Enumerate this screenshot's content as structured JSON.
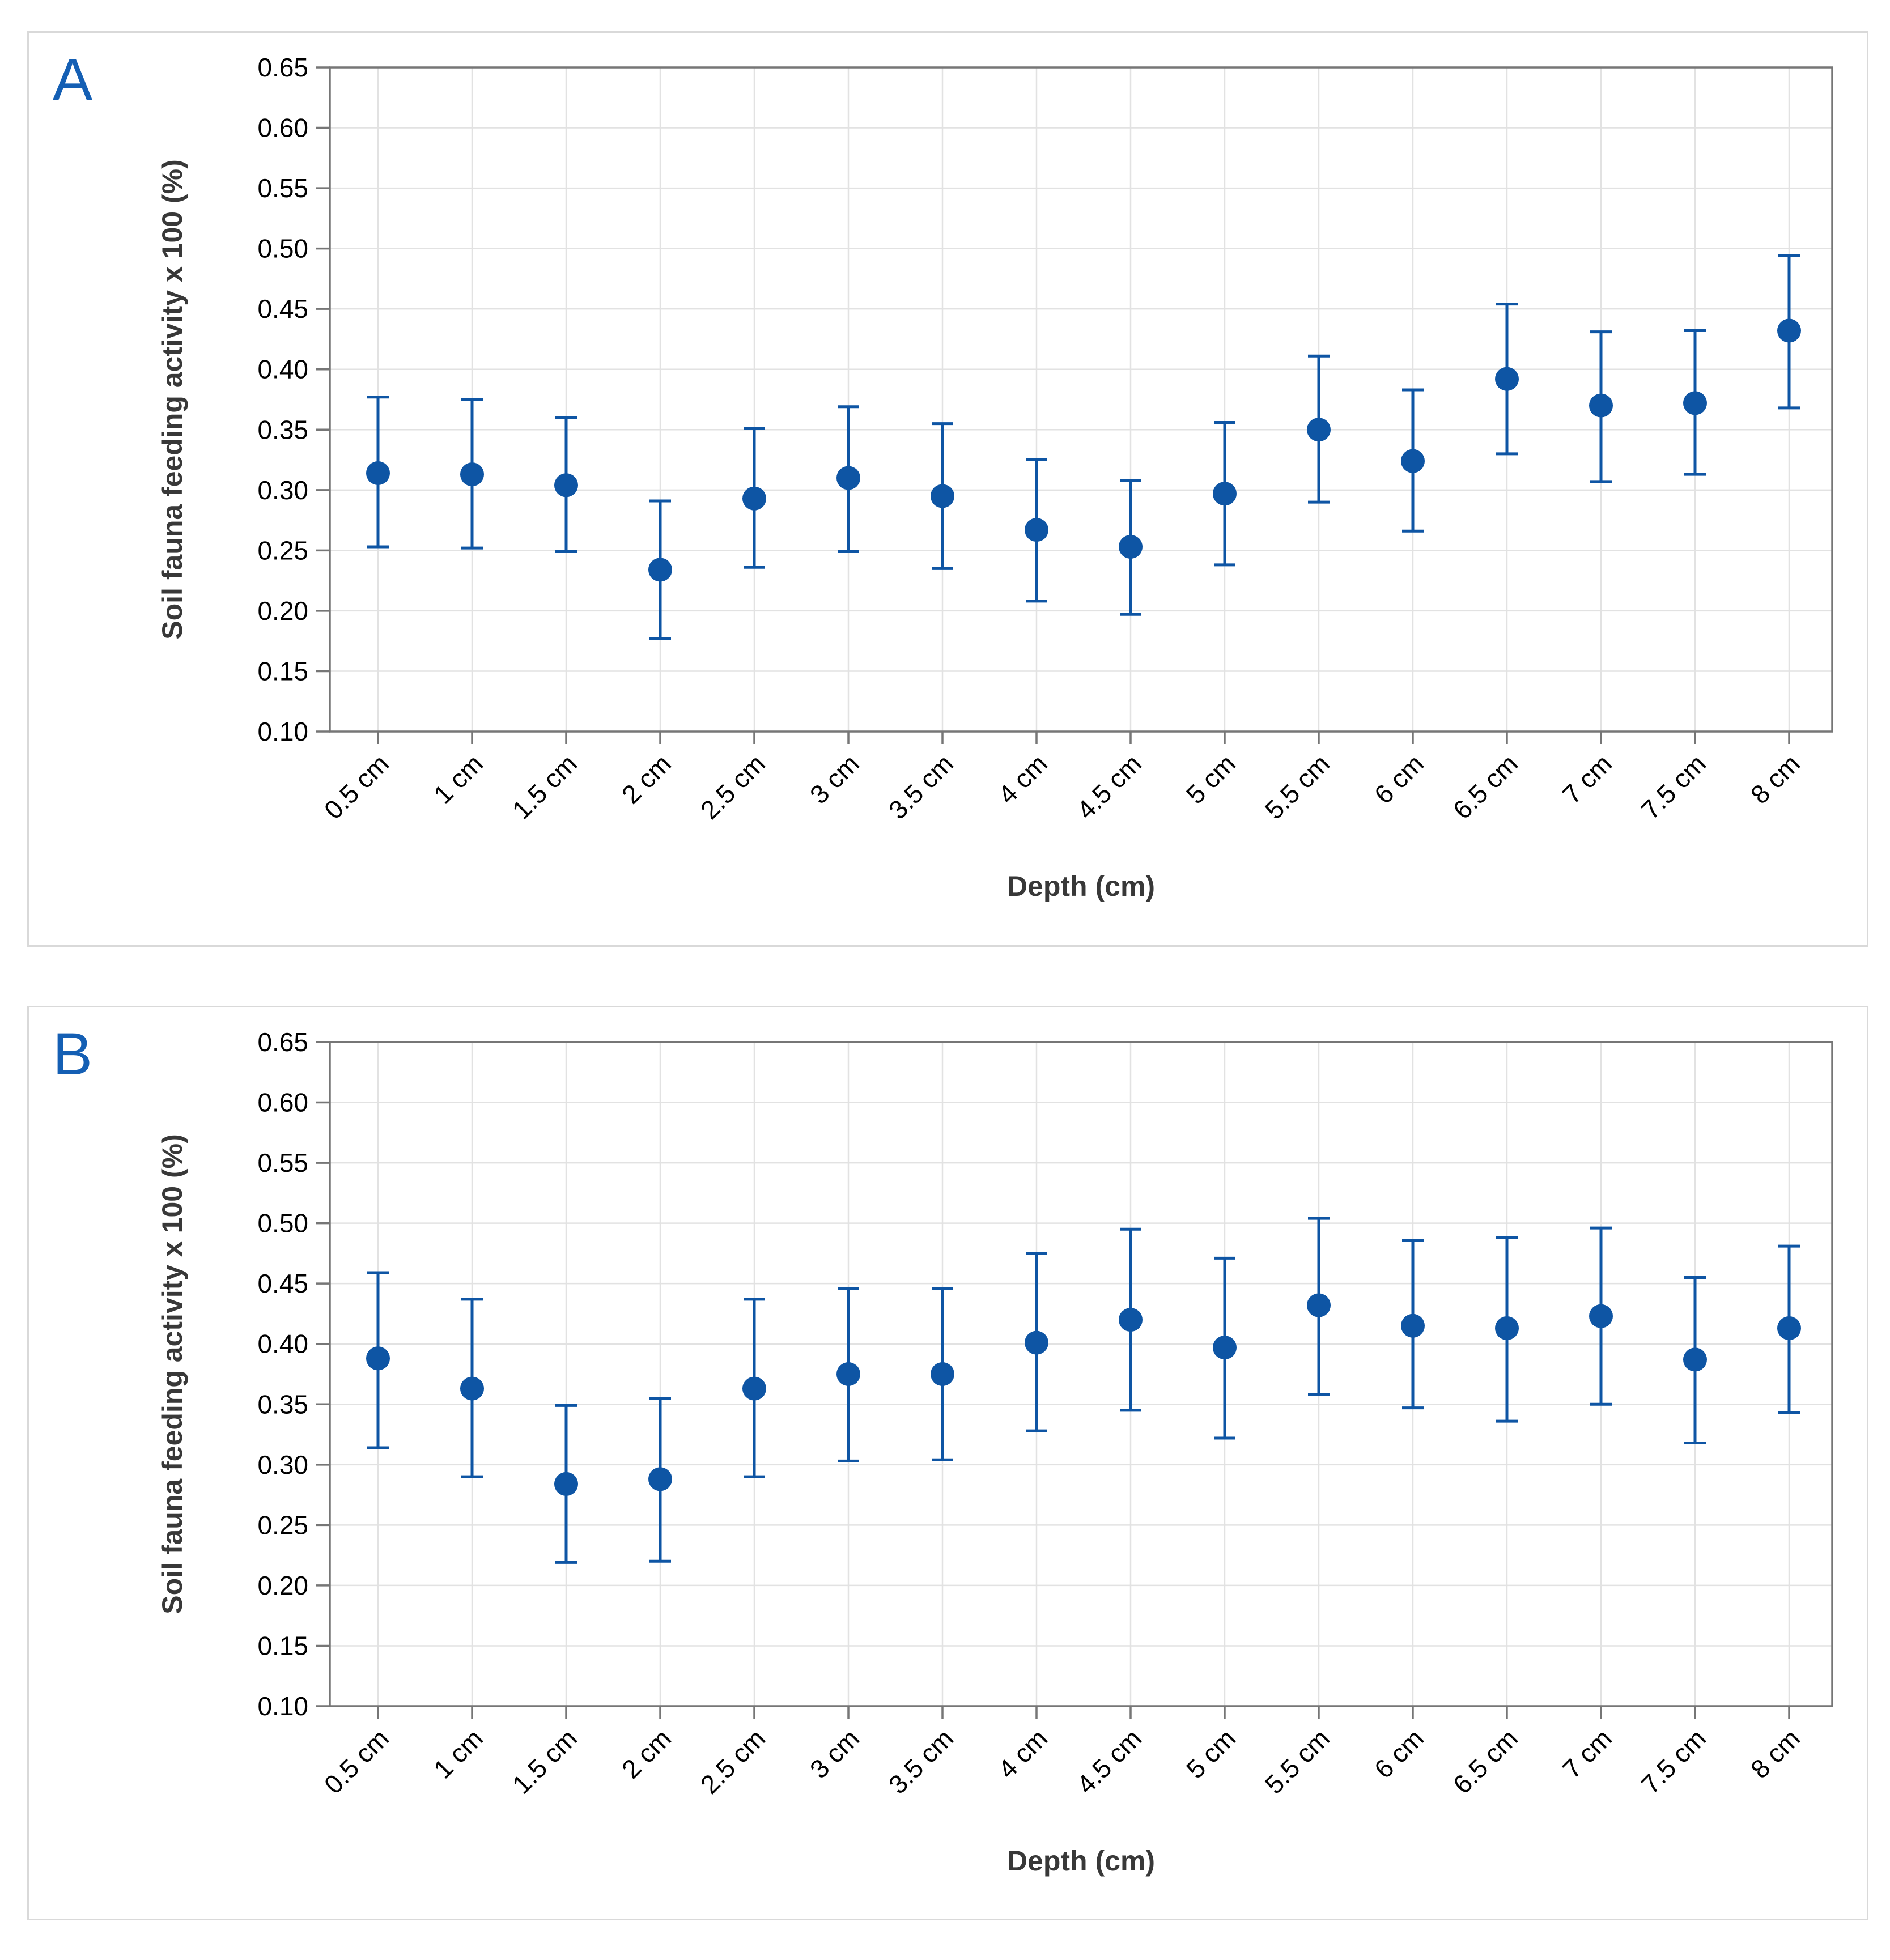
{
  "colors": {
    "marker": "#0E55A4",
    "panel_letter": "#145FB4",
    "gridline": "#E2E2E2",
    "axis_frame": "#767676",
    "tick_label": "#000000",
    "axis_title": "#383838",
    "panel_border": "#D9D9D9",
    "background": "#FFFFFF"
  },
  "panels": [
    {
      "label": "A"
    },
    {
      "label": "B"
    }
  ],
  "chart_data": [
    {
      "type": "scatter",
      "panel_label": "A",
      "xlabel": "Depth (cm)",
      "ylabel": "Soil fauna feeding activity x 100 (%)",
      "ylim": [
        0.1,
        0.65
      ],
      "ytick_step": 0.05,
      "ytick_labels": [
        "0.65",
        "0.60",
        "0.55",
        "0.50",
        "0.45",
        "0.40",
        "0.35",
        "0.30",
        "0.25",
        "0.20",
        "0.15",
        "0.10"
      ],
      "grid": true,
      "legend": "none",
      "categories": [
        "0.5 cm",
        "1 cm",
        "1.5 cm",
        "2 cm",
        "2.5 cm",
        "3 cm",
        "3.5 cm",
        "4 cm",
        "4.5 cm",
        "5 cm",
        "5.5 cm",
        "6 cm",
        "6.5 cm",
        "7 cm",
        "7.5 cm",
        "8 cm"
      ],
      "series": [
        {
          "name": "mean",
          "values": [
            0.314,
            0.313,
            0.304,
            0.234,
            0.293,
            0.31,
            0.295,
            0.267,
            0.253,
            0.297,
            0.35,
            0.324,
            0.392,
            0.37,
            0.372,
            0.432
          ]
        },
        {
          "name": "upper_error",
          "values": [
            0.377,
            0.375,
            0.36,
            0.291,
            0.351,
            0.369,
            0.355,
            0.325,
            0.308,
            0.356,
            0.411,
            0.383,
            0.454,
            0.431,
            0.432,
            0.494
          ]
        },
        {
          "name": "lower_error",
          "values": [
            0.253,
            0.252,
            0.249,
            0.177,
            0.236,
            0.249,
            0.235,
            0.208,
            0.197,
            0.238,
            0.29,
            0.266,
            0.33,
            0.307,
            0.313,
            0.368
          ]
        }
      ]
    },
    {
      "type": "scatter",
      "panel_label": "B",
      "xlabel": "Depth (cm)",
      "ylabel": "Soil fauna feeding activity x 100 (%)",
      "ylim": [
        0.1,
        0.65
      ],
      "ytick_step": 0.05,
      "ytick_labels": [
        "0.65",
        "0.60",
        "0.55",
        "0.50",
        "0.45",
        "0.40",
        "0.35",
        "0.30",
        "0.25",
        "0.20",
        "0.15",
        "0.10"
      ],
      "grid": true,
      "legend": "none",
      "categories": [
        "0.5 cm",
        "1 cm",
        "1.5 cm",
        "2 cm",
        "2.5 cm",
        "3 cm",
        "3.5 cm",
        "4 cm",
        "4.5 cm",
        "5 cm",
        "5.5 cm",
        "6 cm",
        "6.5 cm",
        "7 cm",
        "7.5 cm",
        "8 cm"
      ],
      "series": [
        {
          "name": "mean",
          "values": [
            0.388,
            0.363,
            0.284,
            0.288,
            0.363,
            0.375,
            0.375,
            0.401,
            0.42,
            0.397,
            0.432,
            0.415,
            0.413,
            0.423,
            0.387,
            0.413
          ]
        },
        {
          "name": "upper_error",
          "values": [
            0.459,
            0.437,
            0.349,
            0.355,
            0.437,
            0.446,
            0.446,
            0.475,
            0.495,
            0.471,
            0.504,
            0.486,
            0.488,
            0.496,
            0.455,
            0.481
          ]
        },
        {
          "name": "lower_error",
          "values": [
            0.314,
            0.29,
            0.219,
            0.22,
            0.29,
            0.303,
            0.304,
            0.328,
            0.345,
            0.322,
            0.358,
            0.347,
            0.336,
            0.35,
            0.318,
            0.343
          ]
        }
      ]
    }
  ]
}
